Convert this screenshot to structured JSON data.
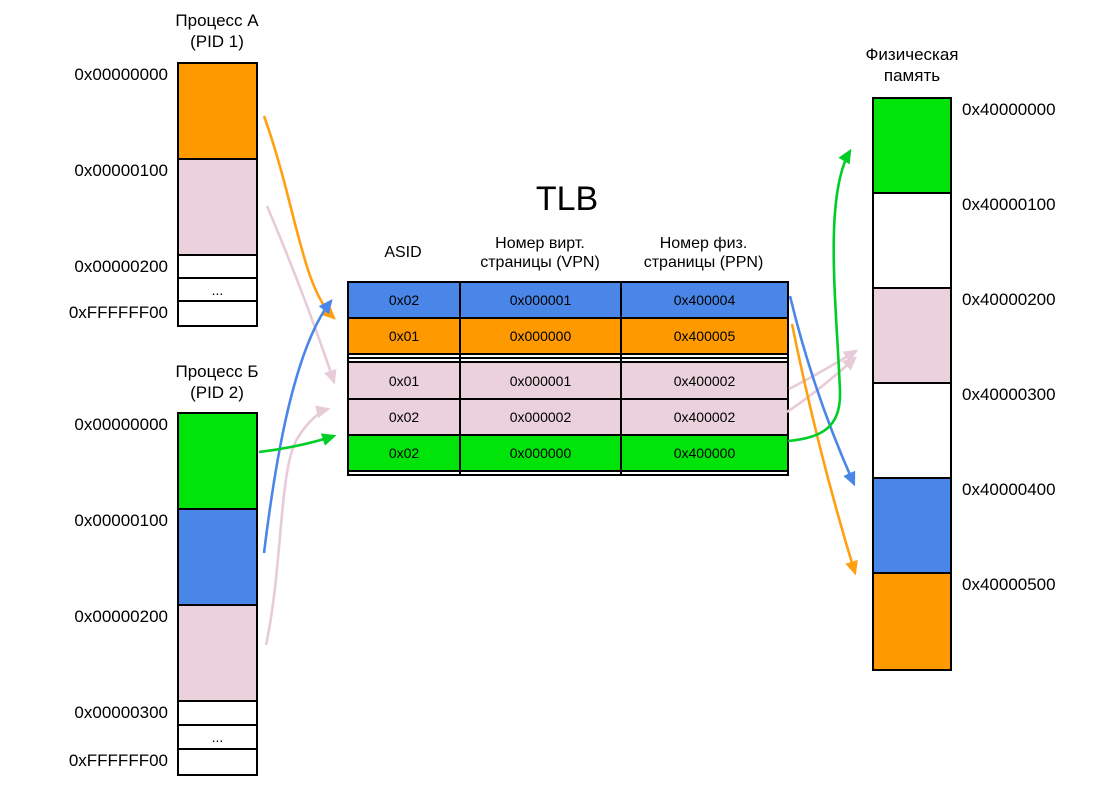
{
  "colors": {
    "orange": "#FF9900",
    "pink": "#EAD1DC",
    "green": "#00E40A",
    "blue": "#4A86E8",
    "white": "#FFFFFF",
    "arrow_orange": "#FFA013",
    "arrow_pink": "#E8CBD8",
    "arrow_green": "#00CE27",
    "arrow_blue": "#4A86E8"
  },
  "tlb": {
    "title": "TLB",
    "headers": {
      "asid": "ASID",
      "vpn": "Номер вирт.\nстраницы (VPN)",
      "ppn": "Номер физ.\nстраницы (PPN)"
    },
    "rows": [
      {
        "color": "blue",
        "asid": "0x02",
        "vpn": "0x000001",
        "ppn": "0x400004"
      },
      {
        "color": "orange",
        "asid": "0x01",
        "vpn": "0x000000",
        "ppn": "0x400005"
      },
      {
        "color": "white",
        "asid": "",
        "vpn": "",
        "ppn": ""
      },
      {
        "color": "white",
        "asid": "",
        "vpn": "",
        "ppn": ""
      },
      {
        "color": "pink",
        "asid": "0x01",
        "vpn": "0x000001",
        "ppn": "0x400002"
      },
      {
        "color": "pink",
        "asid": "0x02",
        "vpn": "0x000002",
        "ppn": "0x400002"
      },
      {
        "color": "green",
        "asid": "0x02",
        "vpn": "0x000000",
        "ppn": "0x400000"
      },
      {
        "color": "white",
        "asid": "",
        "vpn": "",
        "ppn": ""
      }
    ]
  },
  "process_a": {
    "title_line1": "Процесс А",
    "title_line2": "(PID 1)",
    "segments": [
      {
        "color": "orange",
        "size": "page",
        "label": "0x00000000"
      },
      {
        "color": "pink",
        "size": "page",
        "label": "0x00000100"
      },
      {
        "color": "white",
        "size": "small",
        "label": "0x00000200"
      },
      {
        "color": "white",
        "size": "small",
        "text": "..."
      },
      {
        "color": "white",
        "size": "small",
        "label": "0xFFFFFF00"
      }
    ]
  },
  "process_b": {
    "title_line1": "Процесс Б",
    "title_line2": "(PID 2)",
    "segments": [
      {
        "color": "green",
        "size": "page",
        "label": "0x00000000"
      },
      {
        "color": "blue",
        "size": "page",
        "label": "0x00000100"
      },
      {
        "color": "pink",
        "size": "page",
        "label": "0x00000200"
      },
      {
        "color": "white",
        "size": "small",
        "label": "0x00000300"
      },
      {
        "color": "white",
        "size": "small",
        "text": "..."
      },
      {
        "color": "white",
        "size": "small",
        "label": "0xFFFFFF00"
      }
    ]
  },
  "physical": {
    "title_line1": "Физическая",
    "title_line2": "память",
    "segments": [
      {
        "color": "green",
        "size": "page",
        "label": "0x40000000"
      },
      {
        "color": "white",
        "size": "page",
        "label": "0x40000100"
      },
      {
        "color": "pink",
        "size": "page",
        "label": "0x40000200"
      },
      {
        "color": "white",
        "size": "page",
        "label": "0x40000300"
      },
      {
        "color": "blue",
        "size": "page",
        "label": "0x40000400"
      },
      {
        "color": "orange",
        "size": "page",
        "label": "0x40000500"
      }
    ]
  },
  "arrows": [
    {
      "id": "pa-pink",
      "color": "pink",
      "from": "process-a-page-0x00000100",
      "to": "tlb-row-5"
    },
    {
      "id": "pb-pink",
      "color": "pink",
      "from": "process-b-page-0x00000200",
      "to": "tlb-row-6"
    },
    {
      "id": "tlb-pink1",
      "color": "pink",
      "from": "tlb-row-5",
      "to": "physical-0x40000200"
    },
    {
      "id": "tlb-pink2",
      "color": "pink",
      "from": "tlb-row-6",
      "to": "physical-0x40000200"
    },
    {
      "id": "pa-orange",
      "color": "orange",
      "from": "process-a-page-0x00000000",
      "to": "tlb-row-2"
    },
    {
      "id": "tlb-orange",
      "color": "orange",
      "from": "tlb-row-2",
      "to": "physical-0x40000500"
    },
    {
      "id": "pb-blue",
      "color": "blue",
      "from": "process-b-page-0x00000100",
      "to": "tlb-row-1"
    },
    {
      "id": "tlb-blue",
      "color": "blue",
      "from": "tlb-row-1",
      "to": "physical-0x40000400"
    },
    {
      "id": "pb-green",
      "color": "green",
      "from": "process-b-page-0x00000000",
      "to": "tlb-row-7"
    },
    {
      "id": "tlb-green",
      "color": "green",
      "from": "tlb-row-7",
      "to": "physical-0x40000000"
    }
  ]
}
